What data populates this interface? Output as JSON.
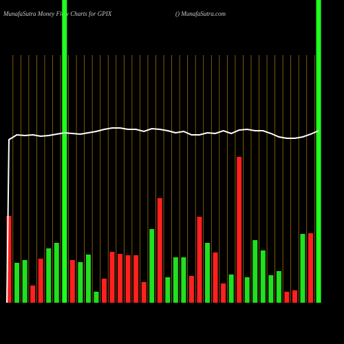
{
  "chart_data": {
    "type": "bar",
    "title": "MunafaSutra  Money Flow  Charts for GPIX",
    "subtitle": "() MunafaSutra.com",
    "ylim": [
      0,
      440
    ],
    "values": [
      126,
      58,
      62,
      25,
      64,
      79,
      87,
      440,
      62,
      59,
      70,
      16,
      35,
      74,
      71,
      69,
      69,
      30,
      107,
      152,
      37,
      66,
      66,
      39,
      125,
      87,
      73,
      28,
      41,
      212,
      37,
      91,
      76,
      40,
      46,
      16,
      18,
      100,
      101,
      440
    ],
    "colors": [
      "#ff2020",
      "#20e020",
      "#20e020",
      "#ff2020",
      "#ff2020",
      "#20e020",
      "#20e020",
      "#20ff20",
      "#ff2020",
      "#20e020",
      "#20e020",
      "#20e020",
      "#ff2020",
      "#ff2020",
      "#ff2020",
      "#ff2020",
      "#ff2020",
      "#ff2020",
      "#20e020",
      "#ff2020",
      "#20e020",
      "#20e020",
      "#20e020",
      "#ff2020",
      "#ff2020",
      "#20e020",
      "#ff2020",
      "#ff2020",
      "#20e020",
      "#ff2020",
      "#20e020",
      "#20e020",
      "#20e020",
      "#20e020",
      "#20e020",
      "#ff2020",
      "#ff2020",
      "#20e020",
      "#ff2020",
      "#20ff20"
    ],
    "line": {
      "color": "#ffffff",
      "values": [
        237,
        244,
        243,
        244,
        242,
        243,
        245,
        247,
        246,
        245,
        247,
        249,
        252,
        254,
        254,
        252,
        252,
        249,
        253,
        252,
        250,
        247,
        249,
        244,
        244,
        247,
        246,
        250,
        246,
        251,
        252,
        250,
        250,
        246,
        241,
        239,
        239,
        241,
        245,
        250
      ]
    }
  }
}
